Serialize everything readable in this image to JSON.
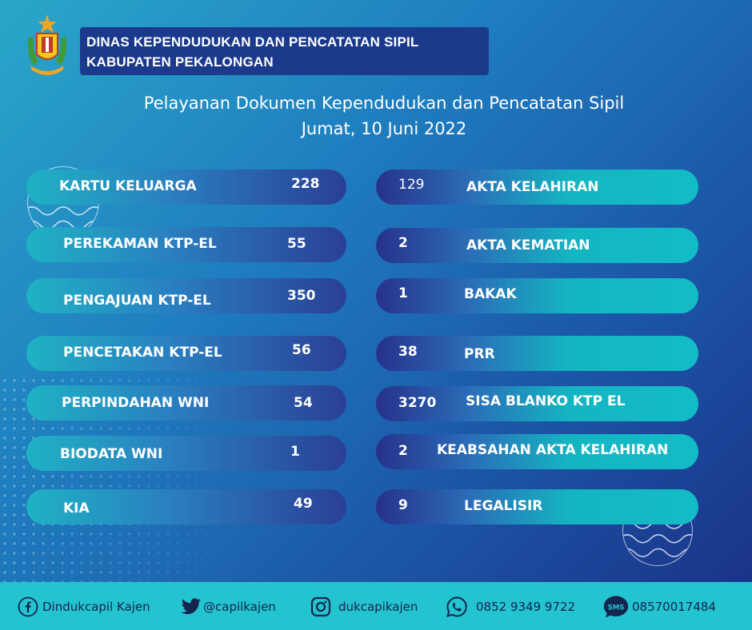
{
  "header": {
    "org_line1": "DINAS KEPENDUDUKAN DAN PENCATATAN SIPIL",
    "org_line2": "KABUPATEN PEKALONGAN",
    "title_line1": "Pelayanan Dokumen Kependudukan dan Pencatatan Sipil",
    "title_line2": "Jumat, 10 Juni 2022"
  },
  "left_items": [
    {
      "label": "KARTU KELUARGA",
      "value": "228"
    },
    {
      "label": "PEREKAMAN KTP-EL",
      "value": "55"
    },
    {
      "label": "PENGAJUAN KTP-EL",
      "value": "350"
    },
    {
      "label": "PENCETAKAN KTP-EL",
      "value": "56"
    },
    {
      "label": "PERPINDAHAN WNI",
      "value": "54"
    },
    {
      "label": "BIODATA WNI",
      "value": "1"
    },
    {
      "label": "KIA",
      "value": "49"
    }
  ],
  "right_items": [
    {
      "label": "AKTA KELAHIRAN",
      "value": "129"
    },
    {
      "label": "AKTA KEMATIAN",
      "value": "2"
    },
    {
      "label": "BAKAK",
      "value": "1"
    },
    {
      "label": "PRR",
      "value": "38"
    },
    {
      "label": "SISA BLANKO KTP EL",
      "value": "3270"
    },
    {
      "label": "KEABSAHAN AKTA KELAHIRAN",
      "value": "2"
    },
    {
      "label": "LEGALISIR",
      "value": "9"
    }
  ],
  "footer": {
    "facebook": "Dindukcapil Kajen",
    "twitter": "@capilkajen",
    "instagram": "dukcapikajen",
    "whatsapp": "0852 9349 9722",
    "sms_badge": "SMS",
    "sms": "08570017484"
  },
  "colors": {
    "org_box": "#1b3a8c",
    "footer": "#23c4cf",
    "footer_text": "#14244f"
  },
  "icons": [
    "facebook-icon",
    "twitter-icon",
    "instagram-icon",
    "whatsapp-icon",
    "sms-icon"
  ]
}
